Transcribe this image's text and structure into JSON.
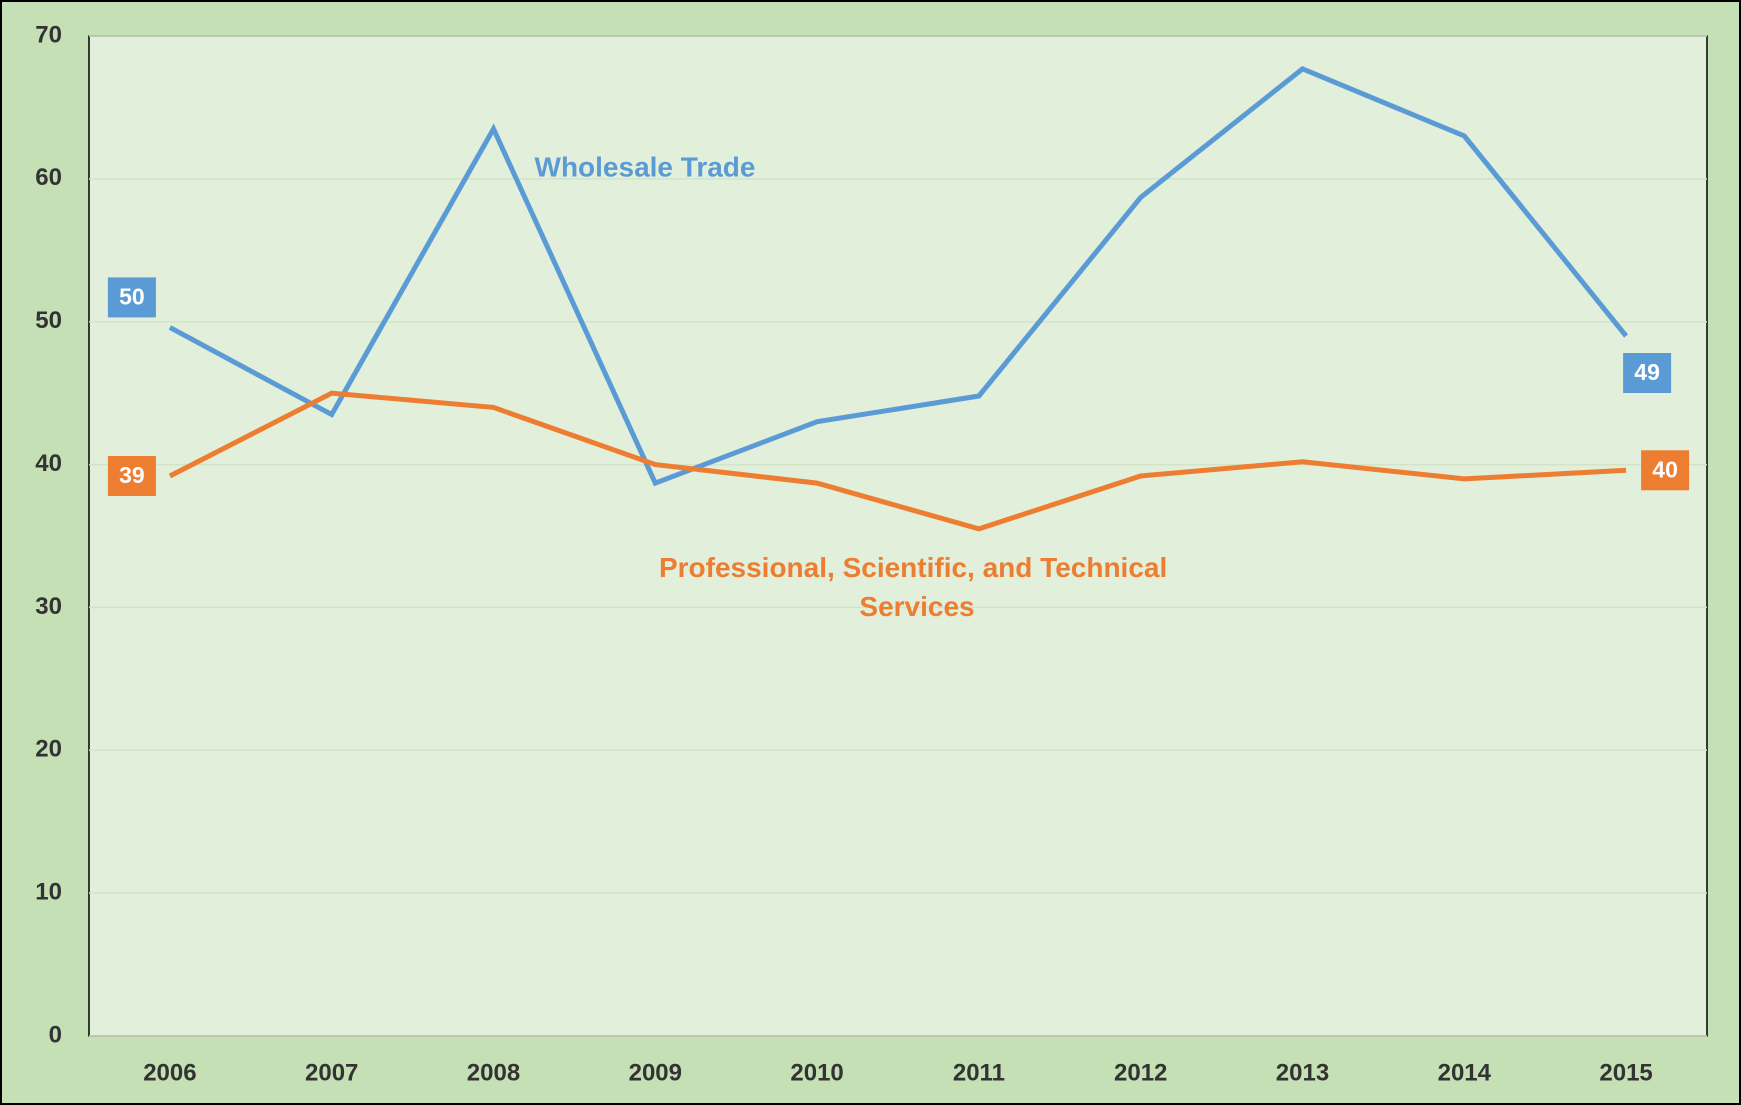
{
  "chart_data": {
    "type": "line",
    "categories": [
      "2006",
      "2007",
      "2008",
      "2009",
      "2010",
      "2011",
      "2012",
      "2013",
      "2014",
      "2015"
    ],
    "series": [
      {
        "name": "Wholesale Trade",
        "color": "#5b9bd5",
        "values": [
          49.6,
          43.5,
          63.5,
          38.7,
          43.0,
          44.8,
          58.7,
          67.7,
          63.0,
          49.0
        ],
        "value_labels": [
          "50",
          null,
          null,
          null,
          null,
          null,
          null,
          null,
          null,
          "49"
        ]
      },
      {
        "name": "Professional, Scientific, and Technical Services",
        "color": "#ed7d31",
        "values": [
          39.2,
          45.0,
          44.0,
          40.0,
          38.7,
          35.5,
          39.2,
          40.2,
          39.0,
          39.6
        ],
        "value_labels": [
          "39",
          null,
          null,
          null,
          null,
          null,
          null,
          null,
          null,
          "40"
        ]
      }
    ],
    "ylim": [
      0,
      70
    ],
    "yticks": [
      0,
      10,
      20,
      30,
      40,
      50,
      60,
      70
    ],
    "grid": true
  }
}
